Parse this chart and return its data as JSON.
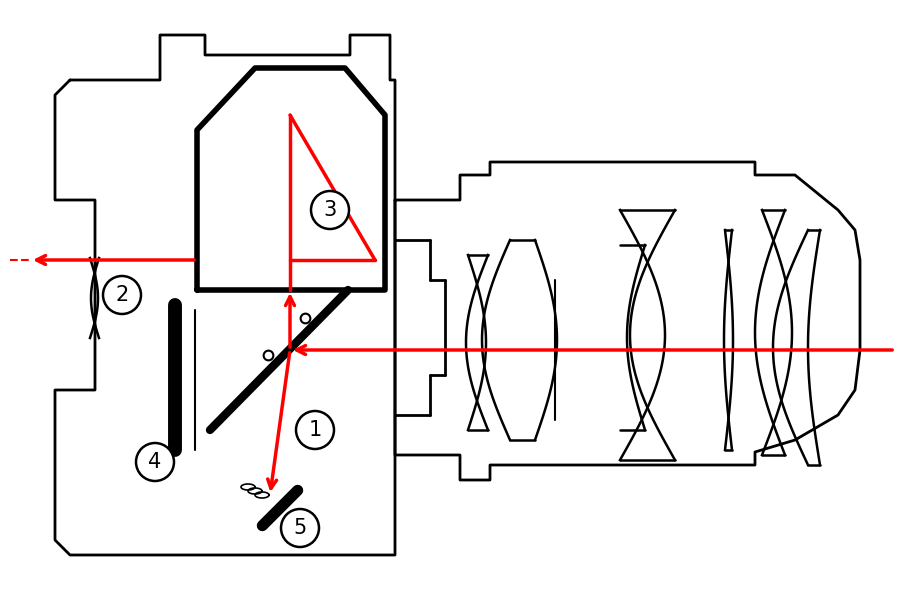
{
  "bg_color": "#ffffff",
  "line_color": "#000000",
  "red_color": "#ff0000",
  "lw_body": 2.0,
  "lw_thick": 4.0,
  "lw_red": 2.5,
  "lw_mirror": 6.0
}
